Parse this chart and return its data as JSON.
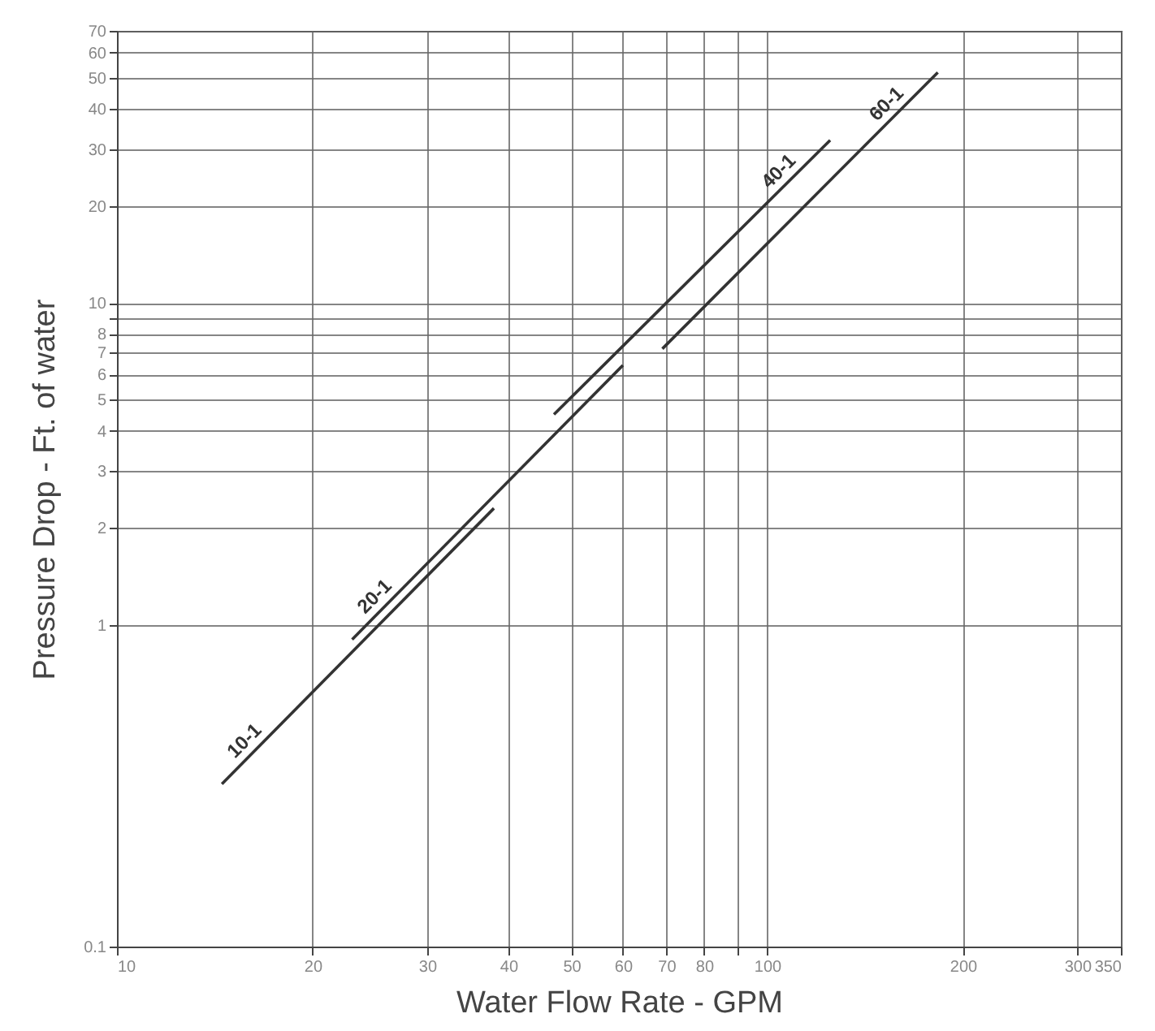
{
  "chart_data": {
    "type": "line",
    "xlabel": "Water Flow Rate - GPM",
    "ylabel": "Pressure Drop - Ft. of water",
    "log": "xy",
    "grid": true,
    "marker": "none",
    "line_style": "solid",
    "xlim": [
      10,
      350
    ],
    "ylim": [
      0.1,
      70
    ],
    "xticks": [
      10,
      20,
      30,
      40,
      50,
      60,
      70,
      80,
      {
        "value": 90,
        "label": null
      },
      100,
      200,
      300,
      350
    ],
    "yticks": [
      0.1,
      1,
      2,
      3,
      4,
      5,
      6,
      7,
      8,
      {
        "value": 9,
        "label": null
      },
      10,
      20,
      30,
      40,
      50,
      60,
      70
    ],
    "series": [
      {
        "name": "10-1",
        "color": "#333333",
        "x": [
          14.5,
          38
        ],
        "values": [
          0.32,
          2.3
        ]
      },
      {
        "name": "20-1",
        "color": "#333333",
        "x": [
          23,
          60
        ],
        "values": [
          0.9,
          6.4
        ]
      },
      {
        "name": "40-1",
        "color": "#333333",
        "x": [
          47,
          125
        ],
        "values": [
          4.5,
          32
        ]
      },
      {
        "name": "60-1",
        "color": "#333333",
        "x": [
          69,
          183
        ],
        "values": [
          7.2,
          52
        ]
      }
    ]
  }
}
